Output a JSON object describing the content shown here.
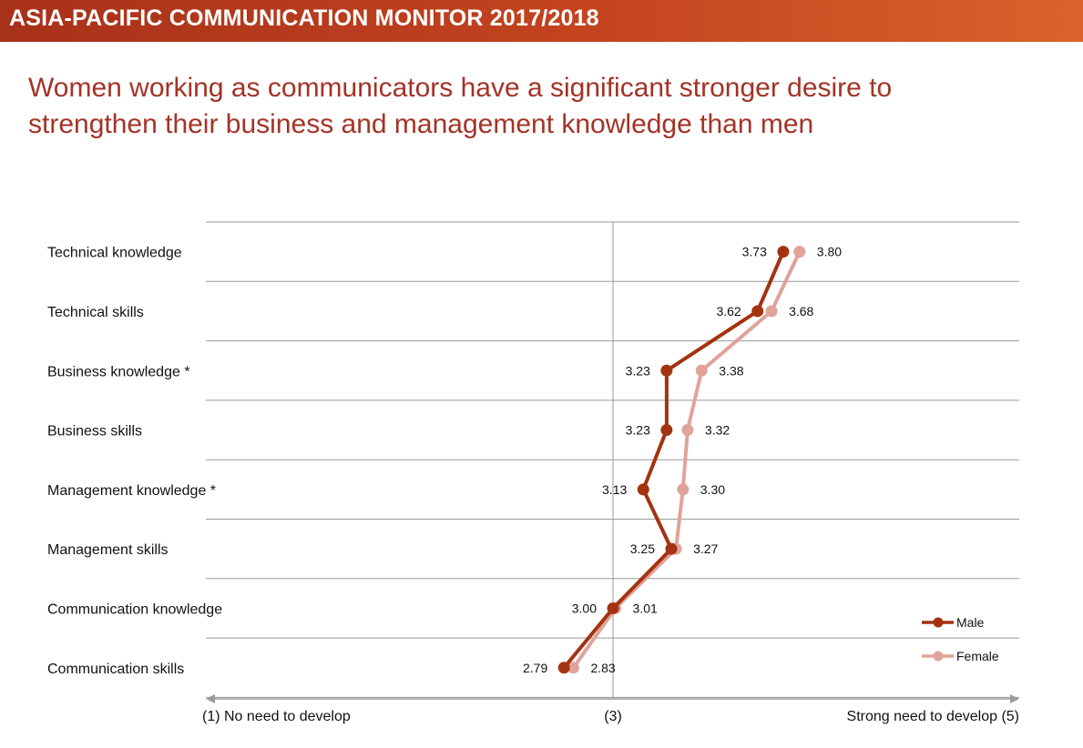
{
  "banner": {
    "title": "ASIA-PACIFIC COMMUNICATION MONITOR 2017/2018"
  },
  "headline": {
    "line1": "Women working as communicators have a significant stronger desire to",
    "line2": "strengthen their business and management knowledge than men"
  },
  "colors": {
    "banner": "#b83a1e",
    "male": "#a33310",
    "female": "#e0a39a",
    "headline": "#a33326",
    "grid": "#999999"
  },
  "chart_data": {
    "type": "line",
    "orientation": "horizontal-values",
    "categories": [
      "Technical knowledge",
      "Technical skills",
      "Business knowledge *",
      "Business skills",
      "Management knowledge *",
      "Management skills",
      "Communication knowledge",
      "Communication skills"
    ],
    "series": [
      {
        "name": "Male",
        "color": "#a33310",
        "values": [
          3.73,
          3.62,
          3.23,
          3.23,
          3.13,
          3.25,
          3.0,
          2.79
        ],
        "labels": [
          "3.73",
          "3.62",
          "3.23",
          "3.23",
          "3.13",
          "3.25",
          "3.00",
          "2.79"
        ]
      },
      {
        "name": "Female",
        "color": "#e0a39a",
        "values": [
          3.8,
          3.68,
          3.38,
          3.32,
          3.3,
          3.27,
          3.01,
          2.83
        ],
        "labels": [
          "3.80",
          "3.68",
          "3.38",
          "3.32",
          "3.30",
          "3.27",
          "3.01",
          "2.83"
        ]
      }
    ],
    "xlim": [
      1,
      5
    ],
    "x_axis_labels": {
      "left": "(1) No need to develop",
      "middle": "(3)",
      "right": "Strong need to develop (5)"
    },
    "legend": {
      "position": "bottom-right",
      "entries": [
        "Male",
        "Female"
      ]
    },
    "grid": true
  }
}
